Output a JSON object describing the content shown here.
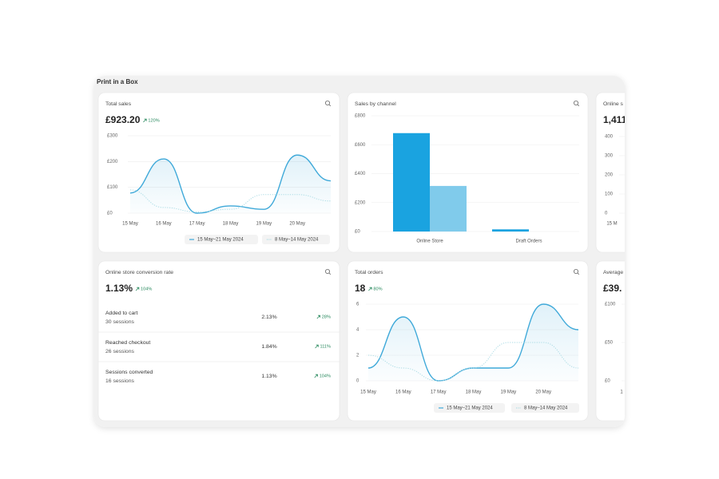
{
  "header": {
    "title": "Print in a Box"
  },
  "total_sales": {
    "title": "Total sales",
    "value": "£923.20",
    "change": "120%",
    "chart": {
      "type": "line",
      "categories": [
        "15 May",
        "16 May",
        "17 May",
        "18 May",
        "19 May",
        "20 May",
        null
      ],
      "series": [
        {
          "name": "15 May–21 May 2024",
          "color": "#3fa9d9",
          "style": "solid",
          "values": [
            78,
            210,
            0,
            28,
            15,
            225,
            125
          ]
        },
        {
          "name": "8 May–14 May 2024",
          "color": "#a9dbe4",
          "style": "dotted",
          "values": [
            90,
            22,
            5,
            15,
            72,
            72,
            47
          ]
        }
      ],
      "ylim": [
        0,
        300
      ],
      "yticks": [
        {
          "value": 0,
          "label": "£0"
        },
        {
          "value": 100,
          "label": "£100"
        },
        {
          "value": 200,
          "label": "£200"
        },
        {
          "value": 300,
          "label": "£300"
        }
      ],
      "grid": true
    }
  },
  "sales_by_channel": {
    "title": "Sales by channel",
    "chart": {
      "type": "bar",
      "categories": [
        "Online Store",
        "Draft Orders"
      ],
      "series": [
        {
          "color": "#1aa3e0",
          "values": [
            680,
            15
          ]
        },
        {
          "color": "#80cbeb",
          "values": [
            315,
            0
          ]
        }
      ],
      "ylim": [
        0,
        800
      ],
      "yticks": [
        {
          "value": 0,
          "label": "£0"
        },
        {
          "value": 200,
          "label": "£200"
        },
        {
          "value": 400,
          "label": "£400"
        },
        {
          "value": 600,
          "label": "£600"
        },
        {
          "value": 800,
          "label": "£800"
        }
      ],
      "grid": true
    }
  },
  "sessions_card": {
    "title": "Online s",
    "value": "1,411",
    "chart": {
      "type": "line",
      "categories": [
        "15 M"
      ],
      "ylim": [
        0,
        400
      ],
      "yticks": [
        0,
        100,
        200,
        300,
        400
      ],
      "grid": true
    }
  },
  "conversion_rate": {
    "title": "Online store conversion rate",
    "value": "1.13%",
    "change": "104%",
    "rows": [
      {
        "label": "Added to cart",
        "sessions": "30 sessions",
        "rate": "2.13%",
        "change": "28%"
      },
      {
        "label": "Reached checkout",
        "sessions": "26 sessions",
        "rate": "1.84%",
        "change": "111%"
      },
      {
        "label": "Sessions converted",
        "sessions": "16 sessions",
        "rate": "1.13%",
        "change": "104%"
      }
    ]
  },
  "total_orders": {
    "title": "Total orders",
    "value": "18",
    "change": "80%",
    "chart": {
      "type": "line",
      "categories": [
        "15 May",
        "16 May",
        "17 May",
        "18 May",
        "19 May",
        "20 May",
        null
      ],
      "series": [
        {
          "name": "15 May–21 May 2024",
          "color": "#3fa9d9",
          "style": "solid",
          "values": [
            1,
            5,
            0,
            1,
            1,
            6,
            4
          ]
        },
        {
          "name": "8 May–14 May 2024",
          "color": "#a9dbe4",
          "style": "dotted",
          "values": [
            2,
            1,
            0,
            1,
            3,
            3,
            1
          ]
        }
      ],
      "ylim": [
        0,
        6
      ],
      "yticks": [
        0,
        2,
        4,
        6
      ],
      "grid": true
    }
  },
  "average_card": {
    "title": "Average",
    "value": "£39.",
    "chart": {
      "type": "line",
      "categories": [
        "1"
      ],
      "ylim": [
        0,
        100
      ],
      "yticks": [
        {
          "value": 0,
          "label": "£0"
        },
        {
          "value": 50,
          "label": "£50"
        },
        {
          "value": 100,
          "label": "£100"
        }
      ],
      "grid": true
    }
  }
}
